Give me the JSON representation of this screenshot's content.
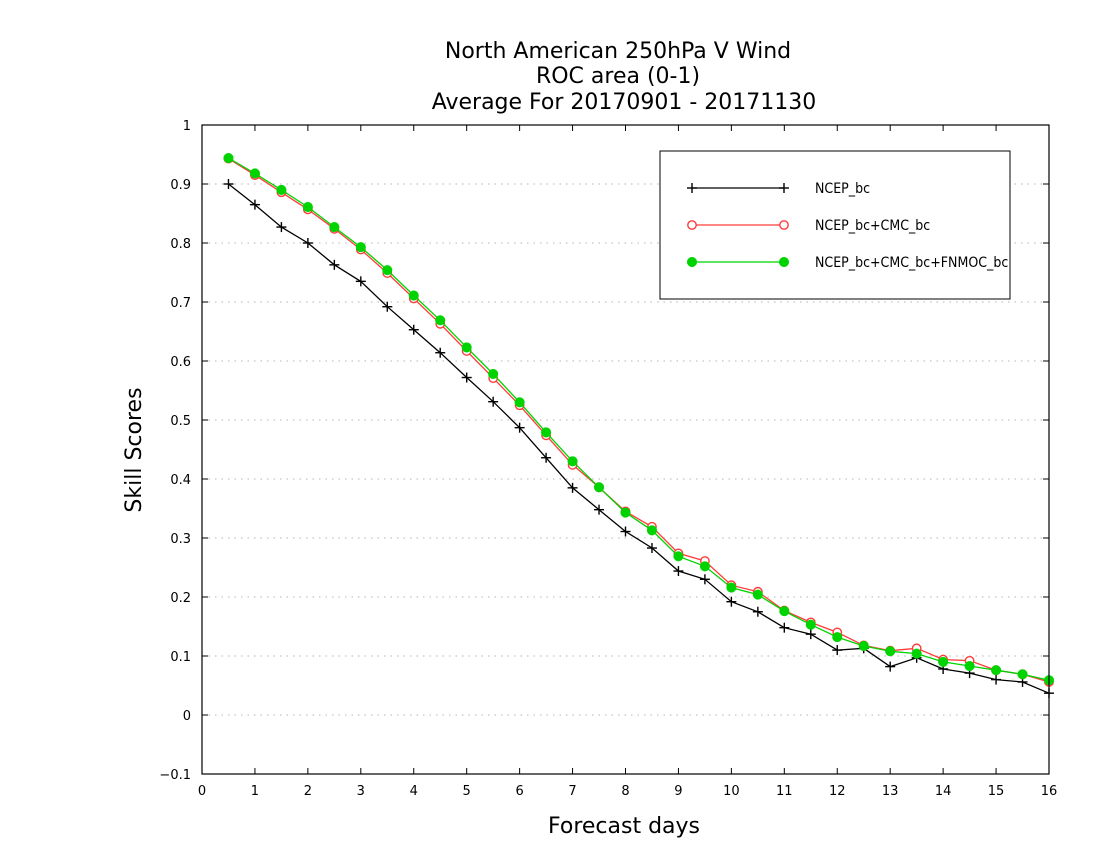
{
  "chart_data": {
    "type": "line",
    "title": [
      "North American 250hPa V Wind",
      "ROC area (0-1)",
      "Average For 20170901 - 20171130"
    ],
    "xlabel": "Forecast days",
    "ylabel": "Skill Scores",
    "xlim": [
      0,
      16
    ],
    "ylim": [
      -0.1,
      1
    ],
    "xticks": [
      "0",
      "1",
      "2",
      "3",
      "4",
      "5",
      "6",
      "7",
      "8",
      "9",
      "10",
      "11",
      "12",
      "13",
      "14",
      "15",
      "16"
    ],
    "yticks": [
      "−0.1",
      "0",
      "0.1",
      "0.2",
      "0.3",
      "0.4",
      "0.5",
      "0.6",
      "0.7",
      "0.8",
      "0.9",
      "1"
    ],
    "grid": "horizontal dotted",
    "legend_position": "top-right",
    "x": [
      0.5,
      1,
      1.5,
      2,
      2.5,
      3,
      3.5,
      4,
      4.5,
      5,
      5.5,
      6,
      6.5,
      7,
      7.5,
      8,
      8.5,
      9,
      9.5,
      10,
      10.5,
      11,
      11.5,
      12,
      12.5,
      13,
      13.5,
      14,
      14.5,
      15,
      15.5,
      16
    ],
    "series": [
      {
        "name": "NCEP_bc",
        "color": "#000000",
        "marker": "plus",
        "values": [
          0.9,
          0.865,
          0.827,
          0.8,
          0.763,
          0.735,
          0.692,
          0.653,
          0.614,
          0.572,
          0.531,
          0.487,
          0.436,
          0.385,
          0.348,
          0.311,
          0.283,
          0.244,
          0.23,
          0.192,
          0.175,
          0.148,
          0.137,
          0.11,
          0.113,
          0.082,
          0.097,
          0.078,
          0.071,
          0.06,
          0.056,
          0.037
        ]
      },
      {
        "name": "NCEP_bc+CMC_bc",
        "color": "#ff3b3b",
        "marker": "open-circle",
        "values": [
          0.943,
          0.915,
          0.886,
          0.857,
          0.824,
          0.789,
          0.749,
          0.706,
          0.663,
          0.617,
          0.571,
          0.525,
          0.474,
          0.424,
          0.386,
          0.345,
          0.319,
          0.274,
          0.261,
          0.22,
          0.209,
          0.177,
          0.157,
          0.14,
          0.118,
          0.109,
          0.113,
          0.094,
          0.092,
          0.076,
          0.069,
          0.056
        ]
      },
      {
        "name": "NCEP_bc+CMC_bc+FNMOC_bc",
        "color": "#00d400",
        "marker": "filled-circle",
        "values": [
          0.944,
          0.918,
          0.89,
          0.861,
          0.827,
          0.793,
          0.754,
          0.711,
          0.669,
          0.623,
          0.578,
          0.53,
          0.479,
          0.43,
          0.386,
          0.343,
          0.313,
          0.269,
          0.252,
          0.216,
          0.204,
          0.176,
          0.153,
          0.132,
          0.117,
          0.108,
          0.104,
          0.09,
          0.083,
          0.076,
          0.069,
          0.059
        ]
      }
    ]
  }
}
